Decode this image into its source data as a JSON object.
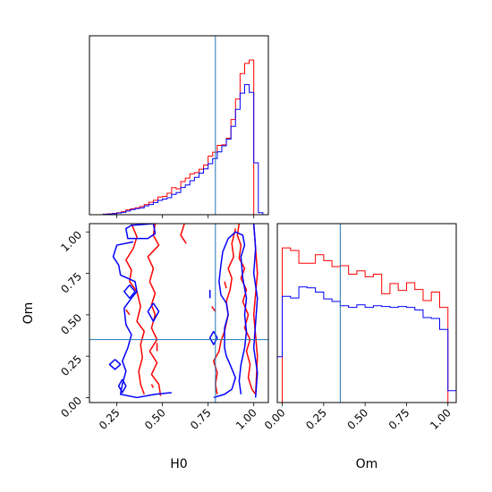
{
  "chart_data": {
    "type": "corner",
    "params": [
      "H0",
      "Om"
    ],
    "truths": {
      "H0": 0.79,
      "Om": 0.35
    },
    "colors": {
      "red": "#ff0000",
      "blue": "#0000ff",
      "truth": "#1f77b4"
    },
    "axes": {
      "H0": {
        "label": "H0",
        "range": [
          0.1,
          1.08
        ],
        "ticks": [
          0.25,
          0.5,
          0.75,
          1.0
        ],
        "tick_labels": [
          "0.25",
          "0.50",
          "0.75",
          "1.00"
        ]
      },
      "Om": {
        "label": "Om",
        "range": [
          -0.03,
          1.05
        ],
        "ticks": [
          0.0,
          0.25,
          0.5,
          0.75,
          1.0
        ],
        "tick_labels": [
          "0.00",
          "0.25",
          "0.50",
          "0.75",
          "1.00"
        ]
      }
    },
    "hist_H0": {
      "edges": [
        0.1,
        0.125,
        0.15,
        0.175,
        0.2,
        0.225,
        0.25,
        0.275,
        0.3,
        0.325,
        0.35,
        0.375,
        0.4,
        0.425,
        0.45,
        0.475,
        0.5,
        0.525,
        0.55,
        0.575,
        0.6,
        0.625,
        0.65,
        0.675,
        0.7,
        0.725,
        0.75,
        0.775,
        0.8,
        0.825,
        0.85,
        0.875,
        0.9,
        0.925,
        0.95,
        0.975,
        1.0,
        1.025,
        1.05,
        1.08
      ],
      "series": [
        {
          "color": "red",
          "values": [
            0.0,
            0.0,
            0.0,
            0.003,
            0.005,
            0.008,
            0.012,
            0.018,
            0.028,
            0.035,
            0.04,
            0.048,
            0.06,
            0.073,
            0.085,
            0.104,
            0.108,
            0.126,
            0.159,
            0.152,
            0.195,
            0.215,
            0.24,
            0.248,
            0.268,
            0.292,
            0.345,
            0.368,
            0.408,
            0.411,
            0.45,
            0.56,
            0.68,
            0.83,
            0.89,
            0.91,
            0.0,
            0.0,
            0.0
          ]
        },
        {
          "color": "blue",
          "values": [
            0.0,
            0.0,
            0.0,
            0.002,
            0.004,
            0.006,
            0.01,
            0.014,
            0.022,
            0.03,
            0.036,
            0.04,
            0.052,
            0.06,
            0.072,
            0.084,
            0.092,
            0.1,
            0.12,
            0.13,
            0.16,
            0.175,
            0.2,
            0.22,
            0.245,
            0.27,
            0.3,
            0.33,
            0.37,
            0.405,
            0.445,
            0.52,
            0.62,
            0.715,
            0.765,
            0.72,
            0.305,
            0.012,
            0.0
          ]
        }
      ]
    },
    "hist_Om": {
      "edges": [
        -0.03,
        0.0,
        0.05,
        0.1,
        0.15,
        0.2,
        0.25,
        0.3,
        0.35,
        0.4,
        0.45,
        0.5,
        0.55,
        0.6,
        0.65,
        0.7,
        0.75,
        0.8,
        0.85,
        0.9,
        0.95,
        1.0,
        1.05
      ],
      "series": [
        {
          "color": "red",
          "values": [
            0.0,
            0.91,
            0.895,
            0.82,
            0.82,
            0.87,
            0.835,
            0.8,
            0.805,
            0.755,
            0.775,
            0.74,
            0.755,
            0.64,
            0.7,
            0.66,
            0.705,
            0.665,
            0.6,
            0.65,
            0.56,
            0.0
          ]
        },
        {
          "color": "blue",
          "values": [
            0.27,
            0.625,
            0.615,
            0.68,
            0.675,
            0.65,
            0.61,
            0.595,
            0.57,
            0.56,
            0.575,
            0.56,
            0.57,
            0.565,
            0.56,
            0.565,
            0.56,
            0.545,
            0.5,
            0.495,
            0.43,
            0.07
          ]
        }
      ]
    },
    "contours": [
      {
        "color": "red",
        "points": [
          [
            0.33,
            1.05
          ],
          [
            0.36,
            0.97
          ],
          [
            0.34,
            0.9
          ],
          [
            0.3,
            0.83
          ],
          [
            0.33,
            0.77
          ],
          [
            0.32,
            0.7
          ],
          [
            0.36,
            0.64
          ],
          [
            0.38,
            0.55
          ],
          [
            0.36,
            0.46
          ],
          [
            0.4,
            0.4
          ],
          [
            0.38,
            0.32
          ],
          [
            0.39,
            0.24
          ],
          [
            0.37,
            0.16
          ],
          [
            0.38,
            0.08
          ],
          [
            0.4,
            0.02
          ]
        ]
      },
      {
        "color": "red",
        "points": [
          [
            0.46,
            1.05
          ],
          [
            0.45,
            0.98
          ],
          [
            0.48,
            0.92
          ],
          [
            0.42,
            0.85
          ],
          [
            0.45,
            0.78
          ],
          [
            0.43,
            0.7
          ],
          [
            0.46,
            0.63
          ],
          [
            0.44,
            0.56
          ],
          [
            0.46,
            0.5
          ],
          [
            0.44,
            0.42
          ],
          [
            0.47,
            0.35
          ],
          [
            0.43,
            0.28
          ],
          [
            0.47,
            0.21
          ],
          [
            0.44,
            0.14
          ],
          [
            0.48,
            0.08
          ],
          [
            0.49,
            0.01
          ]
        ]
      },
      {
        "color": "red",
        "points": [
          [
            0.62,
            1.05
          ],
          [
            0.6,
            0.98
          ],
          [
            0.63,
            0.93
          ]
        ]
      },
      {
        "color": "red",
        "points": [
          [
            0.8,
            0.02
          ],
          [
            0.79,
            0.08
          ],
          [
            0.8,
            0.15
          ],
          [
            0.78,
            0.22
          ],
          [
            0.81,
            0.28
          ],
          [
            0.82,
            0.34
          ],
          [
            0.84,
            0.4
          ],
          [
            0.85,
            0.45
          ],
          [
            0.86,
            0.5
          ],
          [
            0.85,
            0.58
          ],
          [
            0.87,
            0.65
          ],
          [
            0.88,
            0.72
          ],
          [
            0.86,
            0.78
          ],
          [
            0.89,
            0.85
          ],
          [
            0.88,
            0.93
          ],
          [
            0.9,
            1.02
          ]
        ]
      },
      {
        "color": "red",
        "points": [
          [
            0.92,
            1.05
          ],
          [
            0.91,
            0.98
          ],
          [
            0.93,
            0.92
          ],
          [
            0.92,
            0.84
          ],
          [
            0.95,
            0.78
          ],
          [
            0.93,
            0.72
          ],
          [
            0.96,
            0.65
          ],
          [
            0.94,
            0.58
          ],
          [
            0.97,
            0.5
          ],
          [
            0.95,
            0.42
          ],
          [
            0.98,
            0.35
          ],
          [
            0.96,
            0.28
          ],
          [
            0.98,
            0.2
          ],
          [
            0.97,
            0.12
          ],
          [
            0.99,
            0.05
          ],
          [
            1.01,
            0.02
          ],
          [
            1.02,
            0.25
          ],
          [
            1.0,
            0.5
          ],
          [
            1.02,
            0.75
          ],
          [
            1.0,
            1.05
          ]
        ]
      },
      {
        "color": "red",
        "points": [
          [
            0.3,
            0.53
          ],
          [
            0.32,
            0.5
          ]
        ]
      },
      {
        "color": "red",
        "points": [
          [
            0.47,
            0.33
          ],
          [
            0.47,
            0.28
          ]
        ]
      },
      {
        "color": "red",
        "points": [
          [
            0.44,
            0.08
          ],
          [
            0.45,
            0.06
          ]
        ]
      },
      {
        "color": "red",
        "points": [
          [
            0.77,
            0.55
          ],
          [
            0.79,
            0.52
          ]
        ]
      },
      {
        "color": "red",
        "points": [
          [
            0.84,
            0.7
          ],
          [
            0.85,
            0.66
          ]
        ]
      },
      {
        "color": "blue",
        "points": [
          [
            0.45,
            1.05
          ],
          [
            0.33,
            1.04
          ],
          [
            0.3,
            1.02
          ],
          [
            0.31,
            0.96
          ],
          [
            0.42,
            0.96
          ],
          [
            0.46,
            0.99
          ],
          [
            0.45,
            1.05
          ]
        ]
      },
      {
        "color": "blue",
        "points": [
          [
            0.34,
            0.94
          ],
          [
            0.25,
            0.92
          ],
          [
            0.23,
            0.85
          ],
          [
            0.26,
            0.8
          ],
          [
            0.27,
            0.74
          ],
          [
            0.35,
            0.7
          ],
          [
            0.36,
            0.64
          ],
          [
            0.33,
            0.6
          ],
          [
            0.29,
            0.54
          ],
          [
            0.3,
            0.44
          ],
          [
            0.33,
            0.38
          ],
          [
            0.31,
            0.3
          ],
          [
            0.28,
            0.22
          ],
          [
            0.3,
            0.16
          ],
          [
            0.28,
            0.08
          ],
          [
            0.27,
            0.02
          ],
          [
            0.36,
            0.0
          ],
          [
            0.46,
            0.02
          ],
          [
            0.55,
            0.03
          ]
        ]
      },
      {
        "color": "blue",
        "points": [
          [
            0.28,
            0.11
          ],
          [
            0.3,
            0.07
          ],
          [
            0.28,
            0.03
          ],
          [
            0.26,
            0.07
          ],
          [
            0.28,
            0.11
          ]
        ]
      },
      {
        "color": "blue",
        "points": [
          [
            0.24,
            0.23
          ],
          [
            0.27,
            0.2
          ],
          [
            0.24,
            0.17
          ],
          [
            0.21,
            0.2
          ],
          [
            0.24,
            0.23
          ]
        ]
      },
      {
        "color": "blue",
        "points": [
          [
            0.32,
            0.68
          ],
          [
            0.35,
            0.64
          ],
          [
            0.32,
            0.6
          ],
          [
            0.29,
            0.64
          ],
          [
            0.32,
            0.68
          ]
        ]
      },
      {
        "color": "blue",
        "points": [
          [
            0.45,
            0.57
          ],
          [
            0.48,
            0.52
          ],
          [
            0.45,
            0.46
          ],
          [
            0.42,
            0.52
          ],
          [
            0.45,
            0.57
          ]
        ]
      },
      {
        "color": "blue",
        "points": [
          [
            0.78,
            0.0
          ],
          [
            0.84,
            0.02
          ],
          [
            0.88,
            0.05
          ],
          [
            0.9,
            0.12
          ],
          [
            0.87,
            0.2
          ],
          [
            0.85,
            0.25
          ],
          [
            0.84,
            0.3
          ],
          [
            0.84,
            0.42
          ],
          [
            0.86,
            0.5
          ],
          [
            0.85,
            0.57
          ],
          [
            0.82,
            0.62
          ],
          [
            0.81,
            0.7
          ],
          [
            0.82,
            0.8
          ],
          [
            0.83,
            0.88
          ],
          [
            0.86,
            0.96
          ],
          [
            0.9,
            1.0
          ],
          [
            0.94,
            0.98
          ],
          [
            0.95,
            0.92
          ],
          [
            0.93,
            0.85
          ],
          [
            0.94,
            0.72
          ],
          [
            0.96,
            0.6
          ],
          [
            0.95,
            0.5
          ],
          [
            0.96,
            0.4
          ],
          [
            0.95,
            0.3
          ],
          [
            0.93,
            0.2
          ],
          [
            0.92,
            0.1
          ],
          [
            0.93,
            0.02
          ]
        ]
      },
      {
        "color": "blue",
        "points": [
          [
            0.78,
            0.4
          ],
          [
            0.8,
            0.36
          ],
          [
            0.78,
            0.32
          ],
          [
            0.76,
            0.36
          ],
          [
            0.78,
            0.4
          ]
        ]
      },
      {
        "color": "blue",
        "points": [
          [
            0.76,
            0.65
          ],
          [
            0.76,
            0.6
          ]
        ]
      },
      {
        "color": "blue",
        "points": [
          [
            1.0,
            1.05
          ],
          [
            1.01,
            0.9
          ],
          [
            1.0,
            0.75
          ],
          [
            1.02,
            0.6
          ],
          [
            1.01,
            0.45
          ],
          [
            1.0,
            0.3
          ],
          [
            1.02,
            0.15
          ],
          [
            1.01,
            0.0
          ]
        ]
      }
    ]
  }
}
